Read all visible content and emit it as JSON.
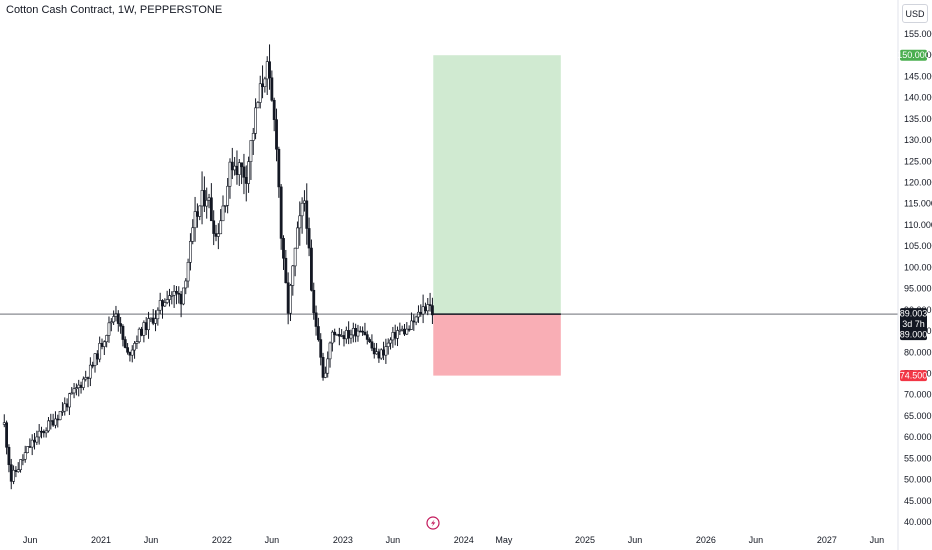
{
  "header": {
    "symbol_title": "Cotton Cash Contract, 1W, PEPPERSTONE",
    "currency_button": "USD"
  },
  "colors": {
    "candle_up": "#ffffff",
    "candle_down": "#131722",
    "candle_outline": "#131722",
    "target_zone": "#c8e6c9",
    "stop_zone": "#f8a5ad",
    "target_tag": "#4caf50",
    "stop_tag": "#f23645",
    "price_tag": "#131722",
    "event_marker": "#c2185b"
  },
  "price_labels": {
    "target": "150.000",
    "stop": "74.500",
    "current_price": "89.003",
    "countdown": "3d 7h",
    "entry": "89.000"
  },
  "chart_data": {
    "type": "candlestick",
    "title": "Cotton Cash Contract, 1W, PEPPERSTONE",
    "y_axis": {
      "ticks": [
        "155.000",
        "150.000",
        "145.000",
        "140.000",
        "135.000",
        "130.000",
        "125.000",
        "120.000",
        "115.000",
        "110.000",
        "105.000",
        "100.000",
        "95.000",
        "90.000",
        "85.000",
        "80.000",
        "75.000",
        "70.000",
        "65.000",
        "60.000",
        "55.000",
        "50.000",
        "45.000",
        "40.000"
      ],
      "range": [
        40,
        155
      ]
    },
    "x_axis": {
      "ticks": [
        "Jun",
        "2021",
        "Jun",
        "2022",
        "Jun",
        "2023",
        "Jun",
        "2024",
        "May",
        "2025",
        "Jun",
        "2026",
        "Jun",
        "2027",
        "Jun"
      ],
      "range": [
        "2020-04",
        "2027-07"
      ]
    },
    "price_path_anchors": [
      {
        "date": "2020-03-15",
        "value": 63
      },
      {
        "date": "2020-04-05",
        "value": 50
      },
      {
        "date": "2020-06-01",
        "value": 58
      },
      {
        "date": "2020-09-01",
        "value": 66
      },
      {
        "date": "2020-12-01",
        "value": 76
      },
      {
        "date": "2021-02-15",
        "value": 90
      },
      {
        "date": "2021-03-20",
        "value": 79
      },
      {
        "date": "2021-05-01",
        "value": 85
      },
      {
        "date": "2021-06-20",
        "value": 89
      },
      {
        "date": "2021-07-20",
        "value": 94
      },
      {
        "date": "2021-09-01",
        "value": 93
      },
      {
        "date": "2021-10-15",
        "value": 112
      },
      {
        "date": "2021-11-15",
        "value": 118
      },
      {
        "date": "2021-12-15",
        "value": 107
      },
      {
        "date": "2022-02-01",
        "value": 125
      },
      {
        "date": "2022-03-15",
        "value": 122
      },
      {
        "date": "2022-04-15",
        "value": 137
      },
      {
        "date": "2022-05-15",
        "value": 148
      },
      {
        "date": "2022-06-15",
        "value": 130
      },
      {
        "date": "2022-07-01",
        "value": 104
      },
      {
        "date": "2022-07-20",
        "value": 90
      },
      {
        "date": "2022-08-15",
        "value": 107
      },
      {
        "date": "2022-09-10",
        "value": 117
      },
      {
        "date": "2022-10-01",
        "value": 90
      },
      {
        "date": "2022-10-20",
        "value": 84
      },
      {
        "date": "2022-11-05",
        "value": 73
      },
      {
        "date": "2022-12-01",
        "value": 85
      },
      {
        "date": "2023-01-15",
        "value": 84
      },
      {
        "date": "2023-03-01",
        "value": 86
      },
      {
        "date": "2023-04-10",
        "value": 79
      },
      {
        "date": "2023-05-01",
        "value": 80
      },
      {
        "date": "2023-06-15",
        "value": 85
      },
      {
        "date": "2023-07-15",
        "value": 85
      },
      {
        "date": "2023-08-20",
        "value": 89
      },
      {
        "date": "2023-09-15",
        "value": 92
      },
      {
        "date": "2023-10-01",
        "value": 89
      }
    ],
    "position": {
      "type": "long",
      "entry": 89.0,
      "target": 150.0,
      "stop": 74.5,
      "start": "2023-10-01",
      "end": "2024-10-20"
    },
    "last_price": 89.003,
    "grid": false,
    "legend": "none"
  }
}
